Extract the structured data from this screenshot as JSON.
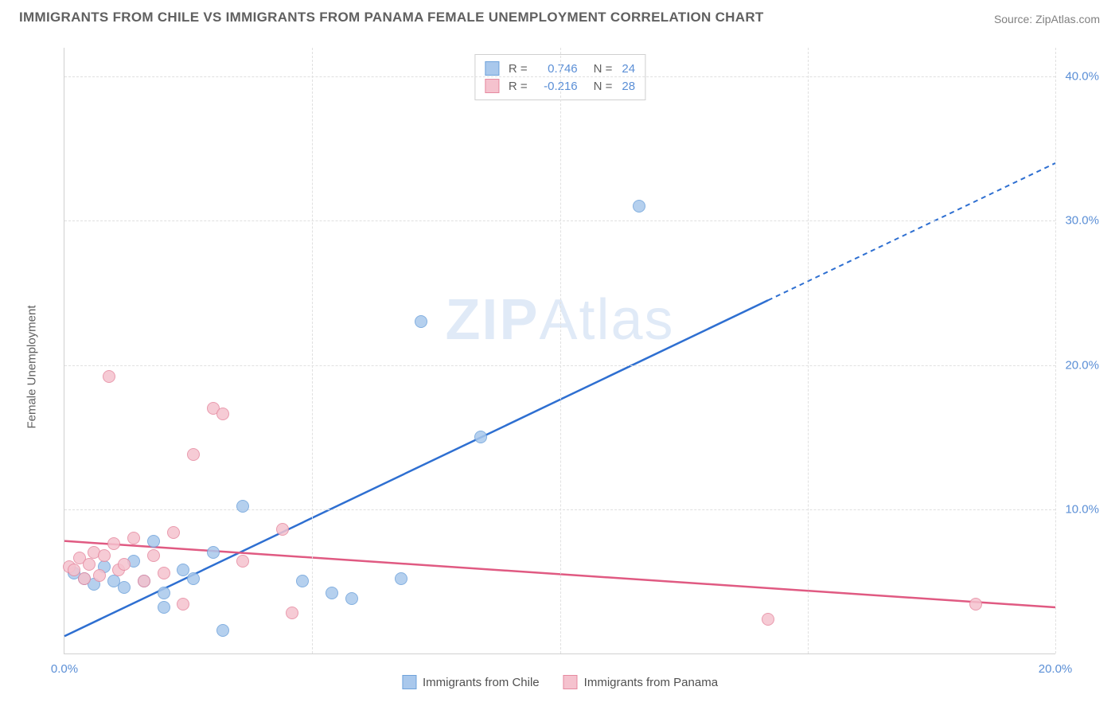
{
  "header": {
    "title": "IMMIGRANTS FROM CHILE VS IMMIGRANTS FROM PANAMA FEMALE UNEMPLOYMENT CORRELATION CHART",
    "source": "Source: ZipAtlas.com"
  },
  "chart": {
    "type": "scatter",
    "ylabel": "Female Unemployment",
    "watermark": "ZIPAtlas",
    "xlim": [
      0,
      20
    ],
    "ylim": [
      0,
      42
    ],
    "xticks": [
      {
        "v": 0,
        "l": "0.0%"
      },
      {
        "v": 20,
        "l": "20.0%"
      }
    ],
    "yticks": [
      {
        "v": 10,
        "l": "10.0%"
      },
      {
        "v": 20,
        "l": "20.0%"
      },
      {
        "v": 30,
        "l": "30.0%"
      },
      {
        "v": 40,
        "l": "40.0%"
      }
    ],
    "vgrids": [
      5,
      10,
      15,
      20
    ],
    "hgrids": [
      10,
      20,
      30,
      40
    ],
    "grid_color": "#e0e0e0",
    "background_color": "#ffffff",
    "marker_radius": 8,
    "series": [
      {
        "name": "Immigrants from Chile",
        "fill": "#a9c8ec",
        "stroke": "#6fa3db",
        "line_color": "#2e6fd1",
        "R": "0.746",
        "N": "24",
        "regression": {
          "x1": 0,
          "y1": 1.2,
          "x2": 20,
          "y2": 34.0,
          "solid_until_x": 14.2
        },
        "points": [
          [
            0.2,
            5.6
          ],
          [
            0.4,
            5.2
          ],
          [
            0.6,
            4.8
          ],
          [
            0.8,
            6.0
          ],
          [
            1.0,
            5.0
          ],
          [
            1.2,
            4.6
          ],
          [
            1.4,
            6.4
          ],
          [
            1.6,
            5.0
          ],
          [
            1.8,
            7.8
          ],
          [
            2.0,
            4.2
          ],
          [
            2.0,
            3.2
          ],
          [
            2.4,
            5.8
          ],
          [
            2.6,
            5.2
          ],
          [
            3.0,
            7.0
          ],
          [
            3.2,
            1.6
          ],
          [
            3.6,
            10.2
          ],
          [
            4.8,
            5.0
          ],
          [
            5.4,
            4.2
          ],
          [
            5.8,
            3.8
          ],
          [
            6.8,
            5.2
          ],
          [
            7.2,
            23.0
          ],
          [
            8.4,
            15.0
          ],
          [
            11.6,
            31.0
          ]
        ]
      },
      {
        "name": "Immigrants from Panama",
        "fill": "#f5c2ce",
        "stroke": "#e68aa0",
        "line_color": "#e05a82",
        "R": "-0.216",
        "N": "28",
        "regression": {
          "x1": 0,
          "y1": 7.8,
          "x2": 20,
          "y2": 3.2,
          "solid_until_x": 20
        },
        "points": [
          [
            0.1,
            6.0
          ],
          [
            0.2,
            5.8
          ],
          [
            0.3,
            6.6
          ],
          [
            0.4,
            5.2
          ],
          [
            0.5,
            6.2
          ],
          [
            0.6,
            7.0
          ],
          [
            0.7,
            5.4
          ],
          [
            0.8,
            6.8
          ],
          [
            0.9,
            19.2
          ],
          [
            1.0,
            7.6
          ],
          [
            1.1,
            5.8
          ],
          [
            1.2,
            6.2
          ],
          [
            1.4,
            8.0
          ],
          [
            1.6,
            5.0
          ],
          [
            1.8,
            6.8
          ],
          [
            2.0,
            5.6
          ],
          [
            2.2,
            8.4
          ],
          [
            2.4,
            3.4
          ],
          [
            2.6,
            13.8
          ],
          [
            3.0,
            17.0
          ],
          [
            3.2,
            16.6
          ],
          [
            3.6,
            6.4
          ],
          [
            4.4,
            8.6
          ],
          [
            4.6,
            2.8
          ],
          [
            14.2,
            2.4
          ],
          [
            18.4,
            3.4
          ]
        ]
      }
    ]
  }
}
